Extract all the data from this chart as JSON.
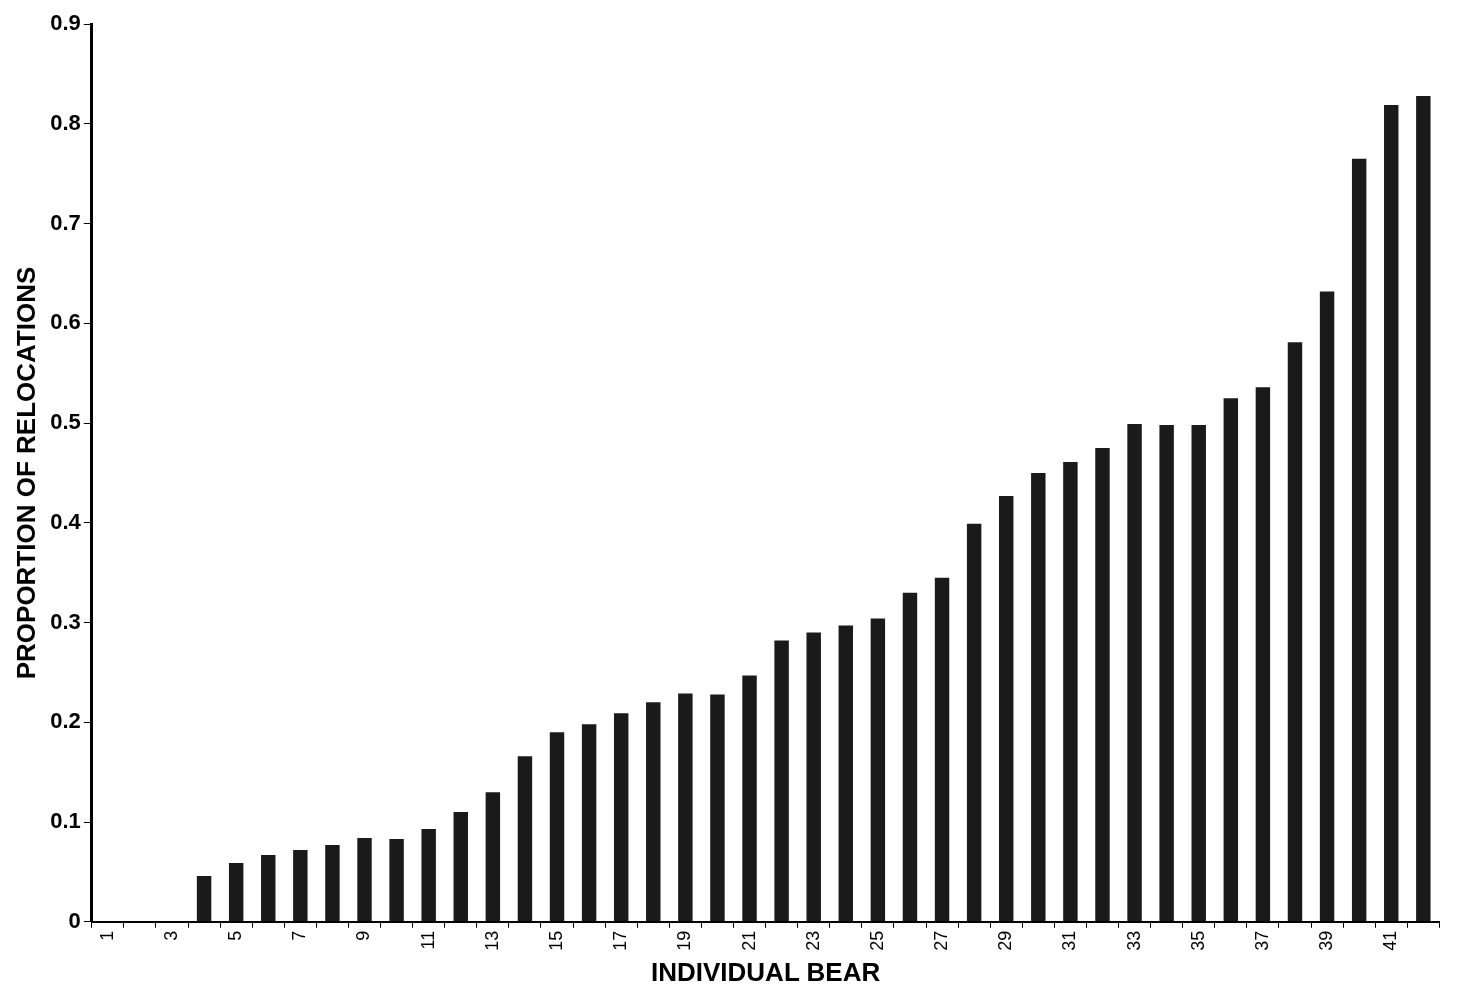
{
  "chart_data": {
    "type": "bar",
    "xlabel": "INDIVIDUAL BEAR",
    "ylabel": "PROPORTION OF RELOCATIONS",
    "categories": [
      "1",
      null,
      "3",
      null,
      "5",
      null,
      "7",
      null,
      "9",
      null,
      "11",
      null,
      "13",
      null,
      "15",
      null,
      "17",
      null,
      "19",
      null,
      "21",
      null,
      "23",
      null,
      "25",
      null,
      "27",
      null,
      "29",
      null,
      "31",
      null,
      "33",
      null,
      "35",
      null,
      "37",
      null,
      "39",
      null,
      "41",
      null
    ],
    "values": [
      0,
      0,
      0,
      0.046,
      0.059,
      0.067,
      0.072,
      0.077,
      0.084,
      0.083,
      0.093,
      0.11,
      0.13,
      0.166,
      0.19,
      0.198,
      0.209,
      0.22,
      0.229,
      0.228,
      0.247,
      0.282,
      0.29,
      0.297,
      0.304,
      0.33,
      0.345,
      0.399,
      0.427,
      0.45,
      0.461,
      0.475,
      0.499,
      0.498,
      0.498,
      0.525,
      0.536,
      0.581,
      0.632,
      0.765,
      0.819,
      0.828
    ],
    "color": "#1a1a1a",
    "ylim": [
      0,
      0.9
    ],
    "yticks": [
      0,
      0.1,
      0.2,
      0.3,
      0.4,
      0.5,
      0.6,
      0.7,
      0.8,
      0.9
    ],
    "grid": false,
    "legend": false
  }
}
